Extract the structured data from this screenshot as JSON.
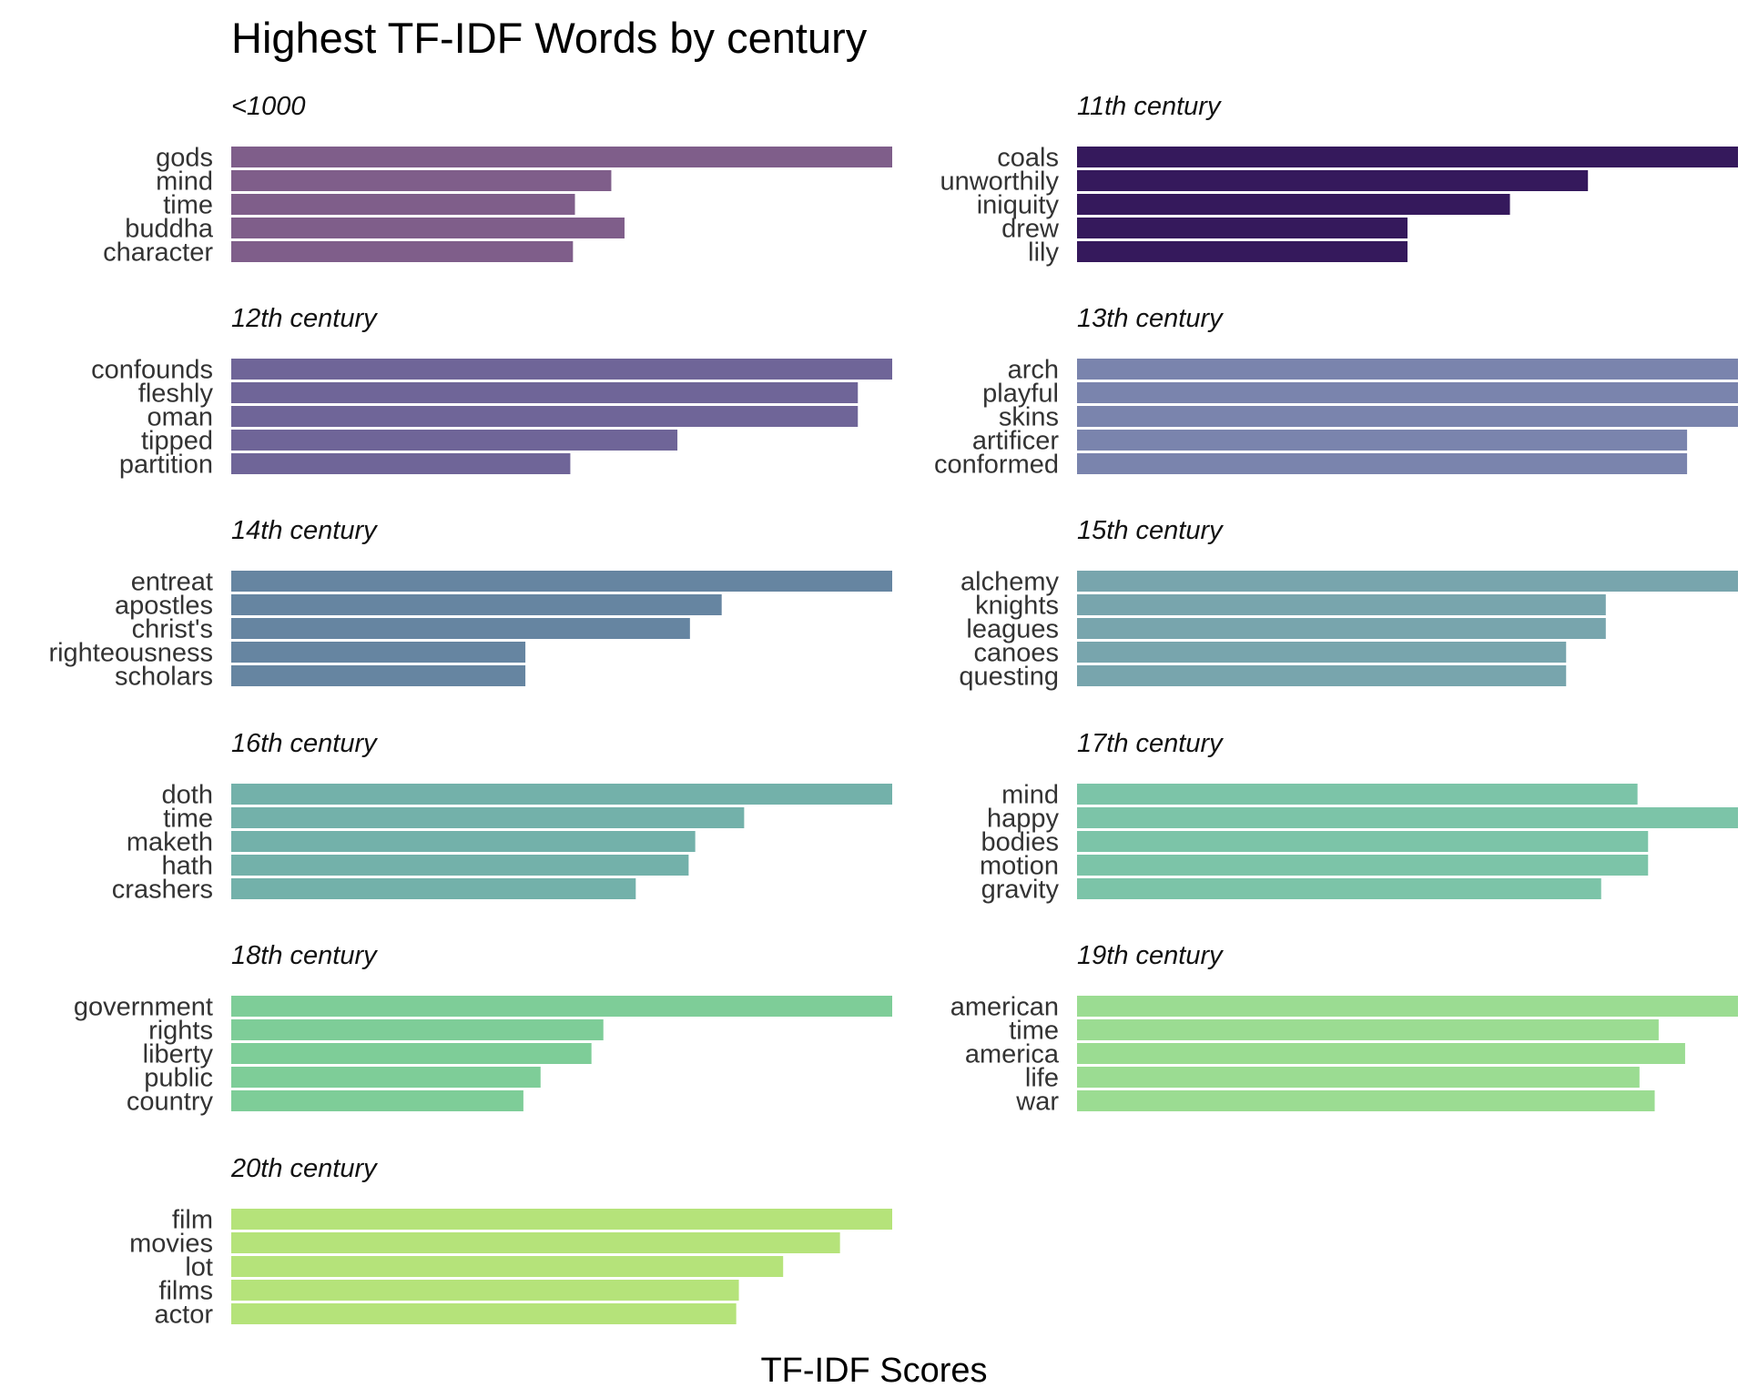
{
  "chart_data": {
    "type": "bar",
    "orientation": "horizontal",
    "title": "Highest TF-IDF Words by century",
    "xlabel": "TF-IDF Scores",
    "ylabel": "",
    "grid": false,
    "facet_scales": "free",
    "facets": [
      {
        "name": "<1000",
        "color": "#7f5e8a",
        "words": [
          "gods",
          "mind",
          "time",
          "buddha",
          "character"
        ],
        "values": [
          1.0,
          0.575,
          0.52,
          0.595,
          0.517
        ]
      },
      {
        "name": "11th century",
        "color": "#35195c",
        "words": [
          "coals",
          "unworthily",
          "iniquity",
          "drew",
          "lily"
        ],
        "values": [
          1.0,
          0.773,
          0.655,
          0.5,
          0.5
        ]
      },
      {
        "name": "12th century",
        "color": "#6f6598",
        "words": [
          "confounds",
          "fleshly",
          "oman",
          "tipped",
          "partition"
        ],
        "values": [
          1.0,
          0.948,
          0.948,
          0.675,
          0.513
        ]
      },
      {
        "name": "13th century",
        "color": "#7a84ad",
        "words": [
          "arch",
          "playful",
          "skins",
          "artificer",
          "conformed"
        ],
        "values": [
          1.0,
          1.0,
          1.0,
          0.923,
          0.923
        ]
      },
      {
        "name": "14th century",
        "color": "#6685a1",
        "words": [
          "entreat",
          "apostles",
          "christ's",
          "righteousness",
          "scholars"
        ],
        "values": [
          1.0,
          0.742,
          0.694,
          0.445,
          0.445
        ]
      },
      {
        "name": "15th century",
        "color": "#78a5ad",
        "words": [
          "alchemy",
          "knights",
          "leagues",
          "canoes",
          "questing"
        ],
        "values": [
          1.0,
          0.8,
          0.8,
          0.74,
          0.74
        ]
      },
      {
        "name": "16th century",
        "color": "#73b1aa",
        "words": [
          "doth",
          "time",
          "maketh",
          "hath",
          "crashers"
        ],
        "values": [
          1.0,
          0.776,
          0.702,
          0.692,
          0.612
        ]
      },
      {
        "name": "17th century",
        "color": "#7cc4a8",
        "words": [
          "mind",
          "happy",
          "bodies",
          "motion",
          "gravity"
        ],
        "values": [
          0.848,
          1.0,
          0.864,
          0.864,
          0.793
        ]
      },
      {
        "name": "18th century",
        "color": "#7ecd98",
        "words": [
          "government",
          "rights",
          "liberty",
          "public",
          "country"
        ],
        "values": [
          1.0,
          0.563,
          0.545,
          0.468,
          0.442
        ]
      },
      {
        "name": "19th century",
        "color": "#9bdc92",
        "words": [
          "american",
          "time",
          "america",
          "life",
          "war"
        ],
        "values": [
          1.0,
          0.88,
          0.92,
          0.851,
          0.874
        ]
      },
      {
        "name": "20th century",
        "color": "#b5e37a",
        "words": [
          "film",
          "movies",
          "lot",
          "films",
          "actor"
        ],
        "values": [
          1.0,
          0.921,
          0.835,
          0.768,
          0.764
        ]
      }
    ]
  }
}
